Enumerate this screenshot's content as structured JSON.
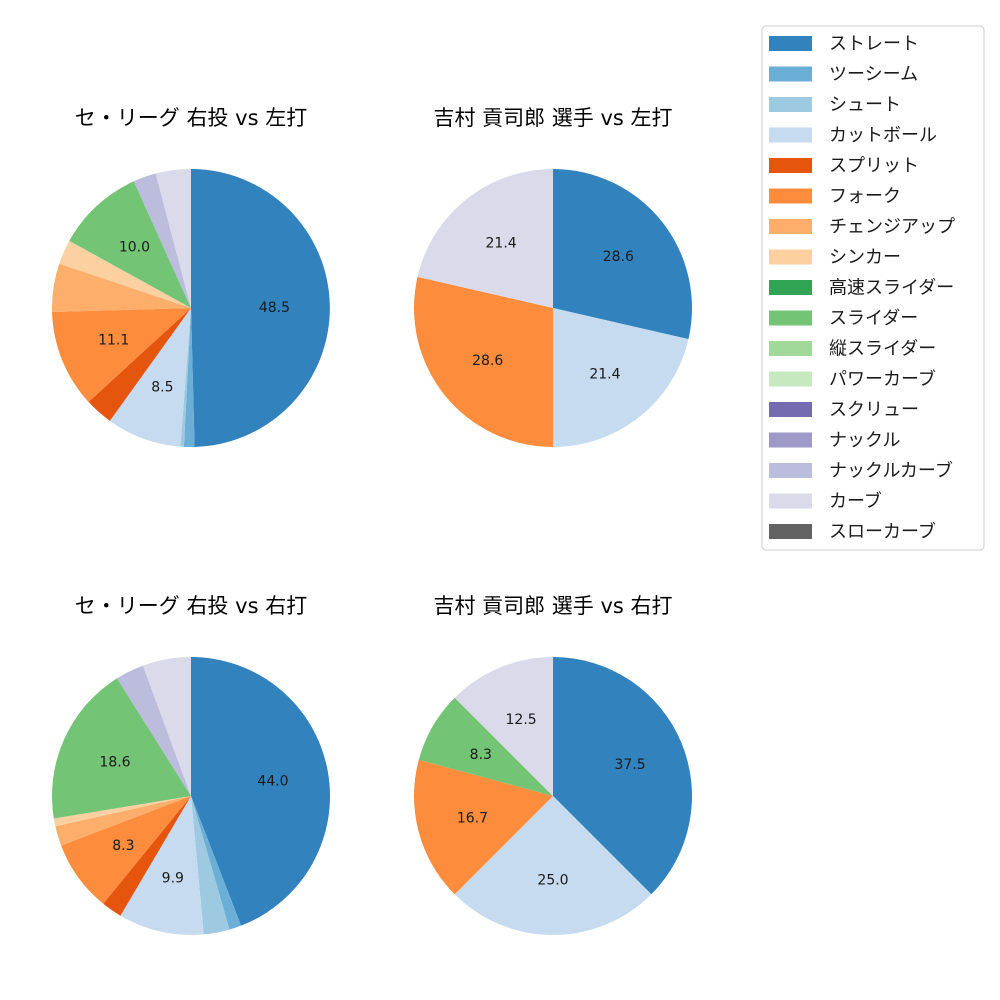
{
  "palette": [
    {
      "name": "ストレート",
      "color": "#3182bd"
    },
    {
      "name": "ツーシーム",
      "color": "#6baed6"
    },
    {
      "name": "シュート",
      "color": "#9ecae1"
    },
    {
      "name": "カットボール",
      "color": "#c6dbef"
    },
    {
      "name": "スプリット",
      "color": "#e6550d"
    },
    {
      "name": "フォーク",
      "color": "#fd8d3c"
    },
    {
      "name": "チェンジアップ",
      "color": "#fdae6b"
    },
    {
      "name": "シンカー",
      "color": "#fdd0a2"
    },
    {
      "name": "高速スライダー",
      "color": "#31a354"
    },
    {
      "name": "スライダー",
      "color": "#74c476"
    },
    {
      "name": "縦スライダー",
      "color": "#a1d99b"
    },
    {
      "name": "パワーカーブ",
      "color": "#c7e9c0"
    },
    {
      "name": "スクリュー",
      "color": "#756bb1"
    },
    {
      "name": "ナックル",
      "color": "#9e9ac8"
    },
    {
      "name": "ナックルカーブ",
      "color": "#bcbddc"
    },
    {
      "name": "カーブ",
      "color": "#dadaeb"
    },
    {
      "name": "スローカーブ",
      "color": "#636363"
    }
  ],
  "chart_data": [
    {
      "type": "pie",
      "title": "セ・リーグ 右投 vs 左打",
      "slices": [
        {
          "label": "ストレート",
          "value": 48.5,
          "show_label": true
        },
        {
          "label": "ツーシーム",
          "value": 1.2,
          "show_label": false
        },
        {
          "label": "シュート",
          "value": 0.4,
          "show_label": false
        },
        {
          "label": "カットボール",
          "value": 8.5,
          "show_label": true
        },
        {
          "label": "スプリット",
          "value": 3.2,
          "show_label": false
        },
        {
          "label": "フォーク",
          "value": 11.1,
          "show_label": true
        },
        {
          "label": "チェンジアップ",
          "value": 5.5,
          "show_label": false
        },
        {
          "label": "シンカー",
          "value": 2.8,
          "show_label": false
        },
        {
          "label": "スライダー",
          "value": 10.0,
          "show_label": true
        },
        {
          "label": "ナックルカーブ",
          "value": 2.6,
          "show_label": false
        },
        {
          "label": "カーブ",
          "value": 4.0,
          "show_label": false
        }
      ]
    },
    {
      "type": "pie",
      "title": "吉村 貢司郎 選手 vs 左打",
      "slices": [
        {
          "label": "ストレート",
          "value": 28.6,
          "show_label": true
        },
        {
          "label": "カットボール",
          "value": 21.4,
          "show_label": true
        },
        {
          "label": "フォーク",
          "value": 28.6,
          "show_label": true
        },
        {
          "label": "カーブ",
          "value": 21.4,
          "show_label": true
        }
      ]
    },
    {
      "type": "pie",
      "title": "セ・リーグ 右投 vs 右打",
      "slices": [
        {
          "label": "ストレート",
          "value": 44.0,
          "show_label": true
        },
        {
          "label": "ツーシーム",
          "value": 1.4,
          "show_label": false
        },
        {
          "label": "シュート",
          "value": 3.0,
          "show_label": false
        },
        {
          "label": "カットボール",
          "value": 9.9,
          "show_label": true
        },
        {
          "label": "スプリット",
          "value": 2.4,
          "show_label": false
        },
        {
          "label": "フォーク",
          "value": 8.3,
          "show_label": true
        },
        {
          "label": "チェンジアップ",
          "value": 2.3,
          "show_label": false
        },
        {
          "label": "シンカー",
          "value": 0.9,
          "show_label": false
        },
        {
          "label": "スライダー",
          "value": 18.6,
          "show_label": true
        },
        {
          "label": "ナックルカーブ",
          "value": 3.3,
          "show_label": false
        },
        {
          "label": "カーブ",
          "value": 5.6,
          "show_label": false
        }
      ]
    },
    {
      "type": "pie",
      "title": "吉村 貢司郎 選手 vs 右打",
      "slices": [
        {
          "label": "ストレート",
          "value": 37.5,
          "show_label": true
        },
        {
          "label": "カットボール",
          "value": 25.0,
          "show_label": true
        },
        {
          "label": "フォーク",
          "value": 16.7,
          "show_label": true
        },
        {
          "label": "スライダー",
          "value": 8.3,
          "show_label": true
        },
        {
          "label": "カーブ",
          "value": 12.5,
          "show_label": true
        }
      ]
    }
  ],
  "legend": {
    "placement": "top-right",
    "entries": [
      "ストレート",
      "ツーシーム",
      "シュート",
      "カットボール",
      "スプリット",
      "フォーク",
      "チェンジアップ",
      "シンカー",
      "高速スライダー",
      "スライダー",
      "縦スライダー",
      "パワーカーブ",
      "スクリュー",
      "ナックル",
      "ナックルカーブ",
      "カーブ",
      "スローカーブ"
    ]
  }
}
